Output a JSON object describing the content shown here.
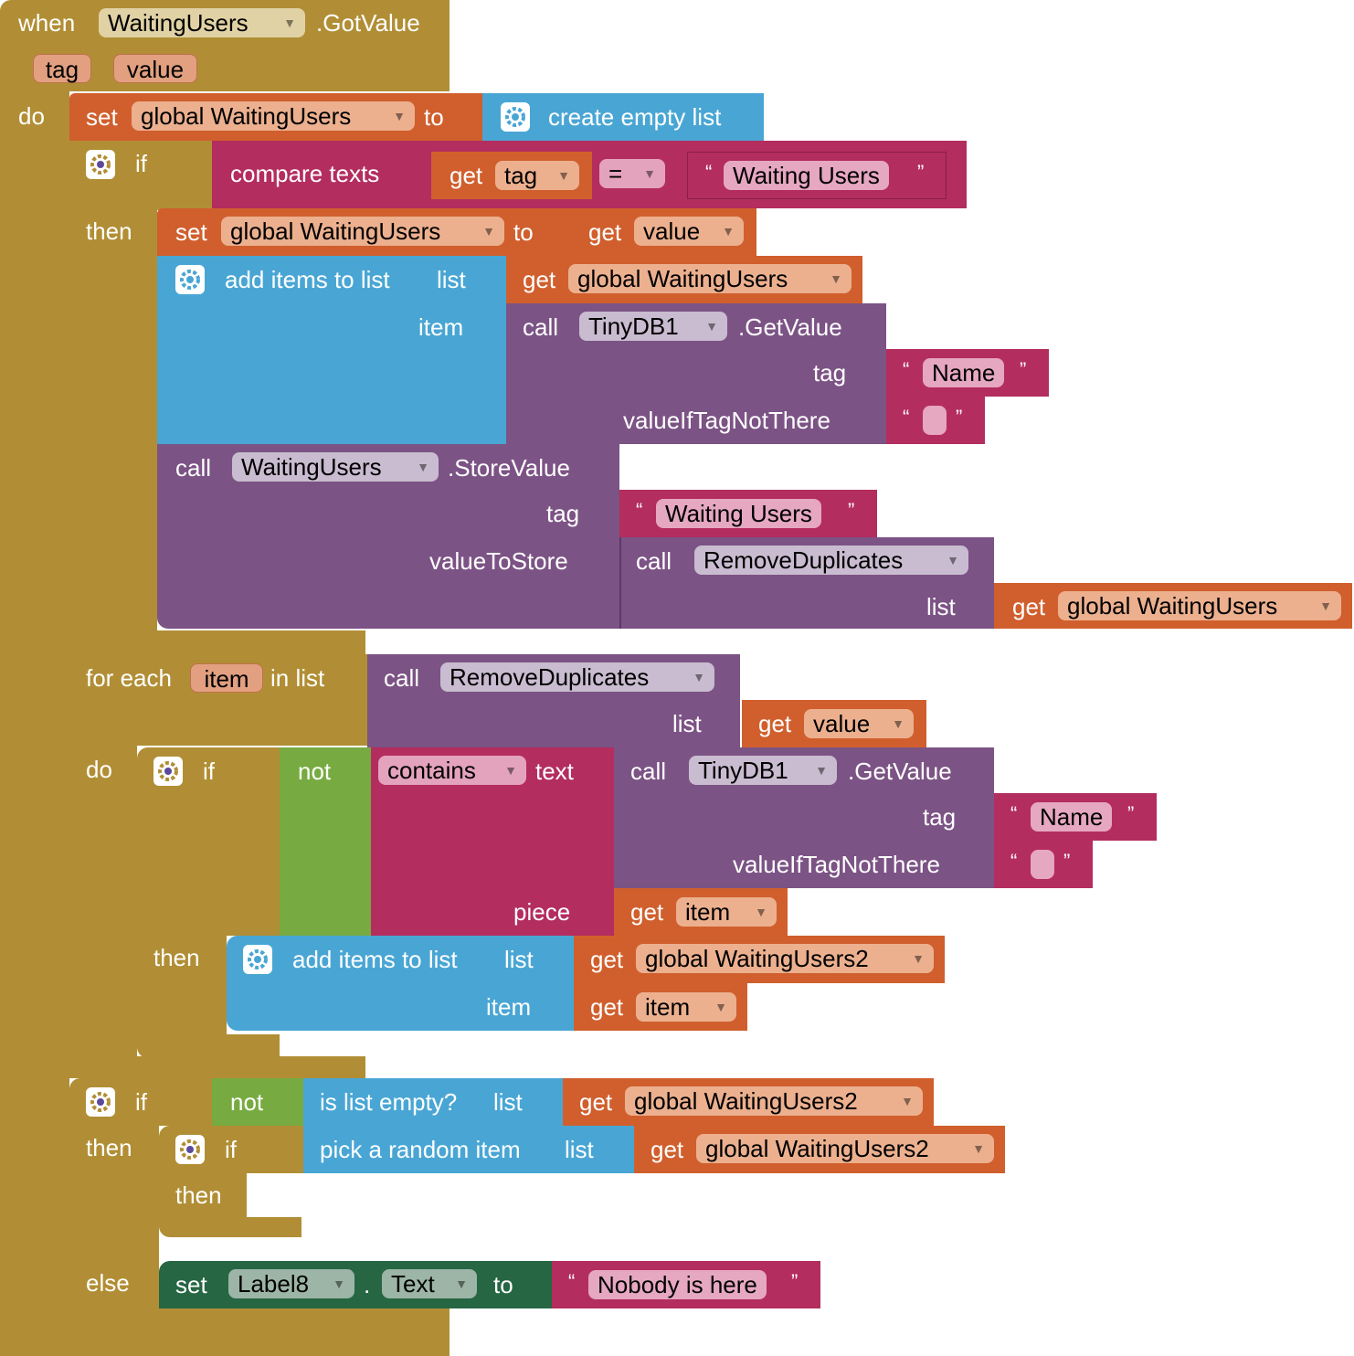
{
  "event": {
    "when": "when",
    "component": "WaitingUsers",
    "event_name": ".GotValue",
    "param_tag": "tag",
    "param_value": "value",
    "do": "do"
  },
  "set1": {
    "set": "set",
    "var": "global WaitingUsers",
    "to": "to",
    "create_empty": "create empty list"
  },
  "if1": {
    "if": "if",
    "then": "then",
    "compare": "compare texts",
    "get": "get",
    "tag": "tag",
    "op": "=",
    "text": "Waiting Users",
    "set": "set",
    "var": "global WaitingUsers",
    "to": "to",
    "get2": "get",
    "value": "value",
    "add_items": "add items to list",
    "list": "list",
    "item": "item",
    "get3": "get",
    "var2": "global WaitingUsers",
    "call": "call",
    "tinydb": "TinyDB1",
    "getvalue": ".GetValue",
    "tag2": "tag",
    "name": "Name",
    "value_if": "valueIfTagNotThere",
    "call2": "call",
    "wu": "WaitingUsers",
    "store": ".StoreValue",
    "tag3": "tag",
    "text2": "Waiting Users",
    "value_to_store": "valueToStore",
    "call3": "call",
    "remove": "RemoveDuplicates",
    "list2": "list",
    "get4": "get",
    "var3": "global WaitingUsers"
  },
  "foreach": {
    "for_each": "for each",
    "item": "item",
    "in_list": "in list",
    "call": "call",
    "remove": "RemoveDuplicates",
    "list": "list",
    "get": "get",
    "value": "value",
    "do": "do",
    "if": "if",
    "not": "not",
    "contains": "contains",
    "text": "text",
    "call2": "call",
    "tinydb": "TinyDB1",
    "getvalue": ".GetValue",
    "tag": "tag",
    "name": "Name",
    "value_if": "valueIfTagNotThere",
    "piece": "piece",
    "get2": "get",
    "item2": "item",
    "then": "then",
    "add_items": "add items to list",
    "list2": "list",
    "item3": "item",
    "get3": "get",
    "var": "global WaitingUsers2",
    "get4": "get",
    "item4": "item"
  },
  "if2": {
    "if": "if",
    "not": "not",
    "is_empty": "is list empty?",
    "list": "list",
    "get": "get",
    "var": "global WaitingUsers2",
    "then": "then",
    "if_inner": "if",
    "pick": "pick a random item",
    "list2": "list",
    "get2": "get",
    "var2": "global WaitingUsers2",
    "then_inner": "then",
    "else": "else",
    "set": "set",
    "label": "Label8",
    "dot": ".",
    "prop": "Text",
    "to": "to",
    "text": "Nobody is here"
  },
  "colors": {
    "event": "#B18E35",
    "variable": "#D05F2D",
    "list": "#49A6D4",
    "text": "#B32D5E",
    "component": "#7C5385",
    "logic": "#77AB41",
    "setter": "#266643"
  },
  "icons": [
    "gear-icon",
    "dropdown-arrow-icon"
  ]
}
